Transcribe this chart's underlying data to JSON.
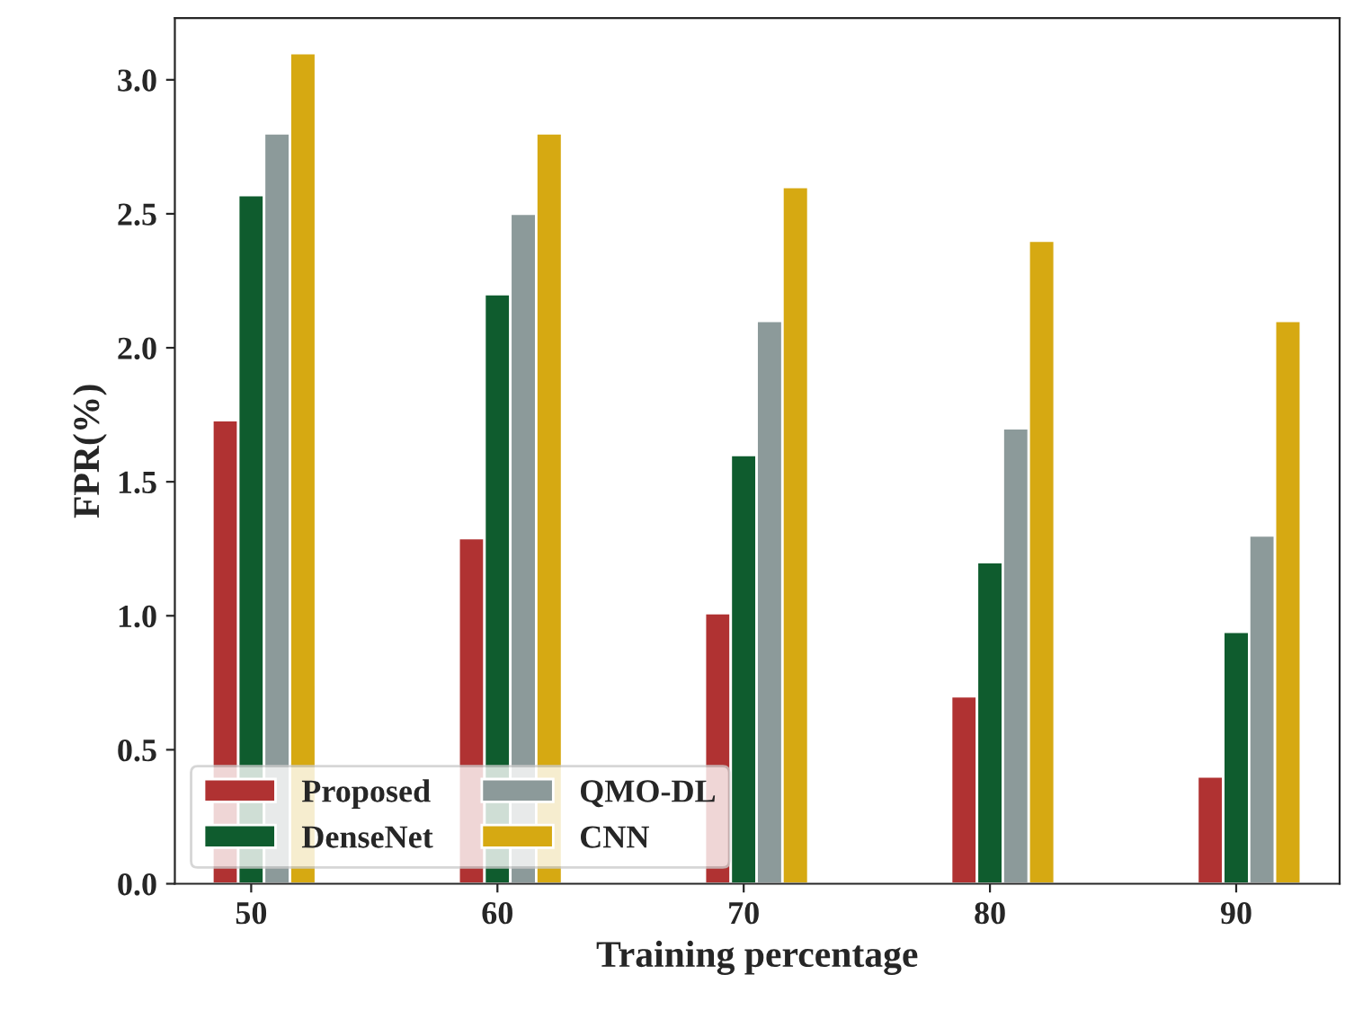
{
  "chart_data": {
    "type": "bar",
    "xlabel": "Training percentage",
    "ylabel": "FPR(%)",
    "categories": [
      "50",
      "60",
      "70",
      "80",
      "90"
    ],
    "series": [
      {
        "name": "Proposed",
        "color": "#b03232",
        "values": [
          1.73,
          1.29,
          1.01,
          0.7,
          0.4
        ]
      },
      {
        "name": "DenseNet",
        "color": "#0f5c2e",
        "values": [
          2.57,
          2.2,
          1.6,
          1.2,
          0.94
        ]
      },
      {
        "name": "QMO-DL",
        "color": "#8c9a9a",
        "values": [
          2.8,
          2.5,
          2.1,
          1.7,
          1.3
        ]
      },
      {
        "name": "CNN",
        "color": "#d6a912",
        "values": [
          3.1,
          2.8,
          2.6,
          2.4,
          2.1
        ]
      }
    ],
    "ylim": [
      0,
      3.23
    ],
    "yticks": [
      {
        "value": 0,
        "label": "0.0"
      },
      {
        "value": 0.5,
        "label": "0.5"
      },
      {
        "value": 1,
        "label": "1.0"
      },
      {
        "value": 1.5,
        "label": "1.5"
      },
      {
        "value": 2,
        "label": "2.0"
      },
      {
        "value": 2.5,
        "label": "2.5"
      },
      {
        "value": 3,
        "label": "3.0"
      }
    ],
    "legend": "bottom left",
    "grid": false
  }
}
